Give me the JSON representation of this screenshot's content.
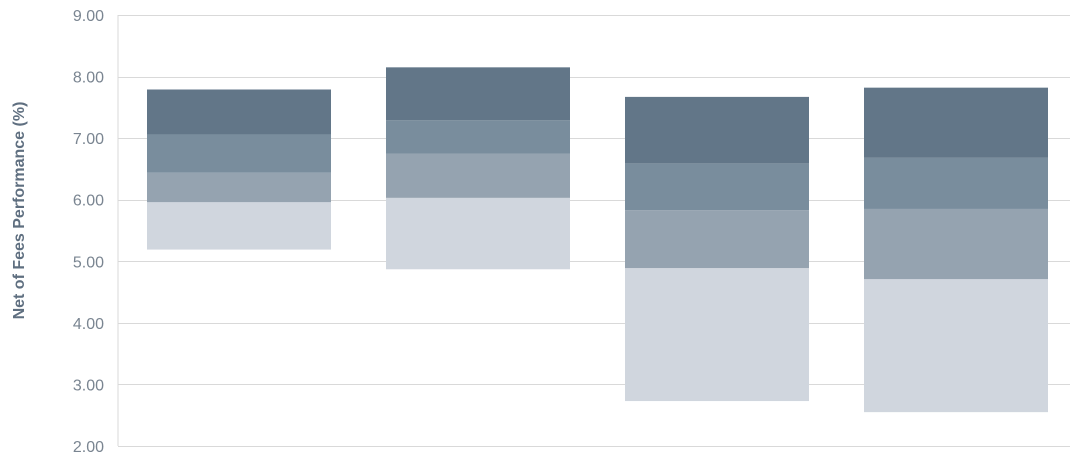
{
  "chart_data": {
    "type": "bar",
    "subtype": "floating-stacked",
    "title": "",
    "xlabel": "",
    "ylabel": "Net of Fees Performance (%)",
    "ylim": [
      2.0,
      9.0
    ],
    "yticks": [
      "2.00",
      "3.00",
      "4.00",
      "5.00",
      "6.00",
      "7.00",
      "8.00",
      "9.00"
    ],
    "grid": true,
    "categories": [
      "",
      "",
      "",
      ""
    ],
    "boundaries": [
      [
        5.19,
        5.96,
        6.44,
        7.06,
        7.79
      ],
      [
        4.87,
        6.03,
        6.75,
        7.29,
        8.15
      ],
      [
        2.73,
        4.89,
        5.83,
        6.59,
        7.67
      ],
      [
        2.55,
        4.71,
        5.85,
        6.68,
        7.82
      ]
    ],
    "band_colors": [
      "#d0d6de",
      "#95a3b0",
      "#798d9d",
      "#627688"
    ]
  },
  "colors": {
    "grid": "#d9d9d9",
    "axis_text": "#7a8591",
    "axis_title": "#5f6f80"
  }
}
